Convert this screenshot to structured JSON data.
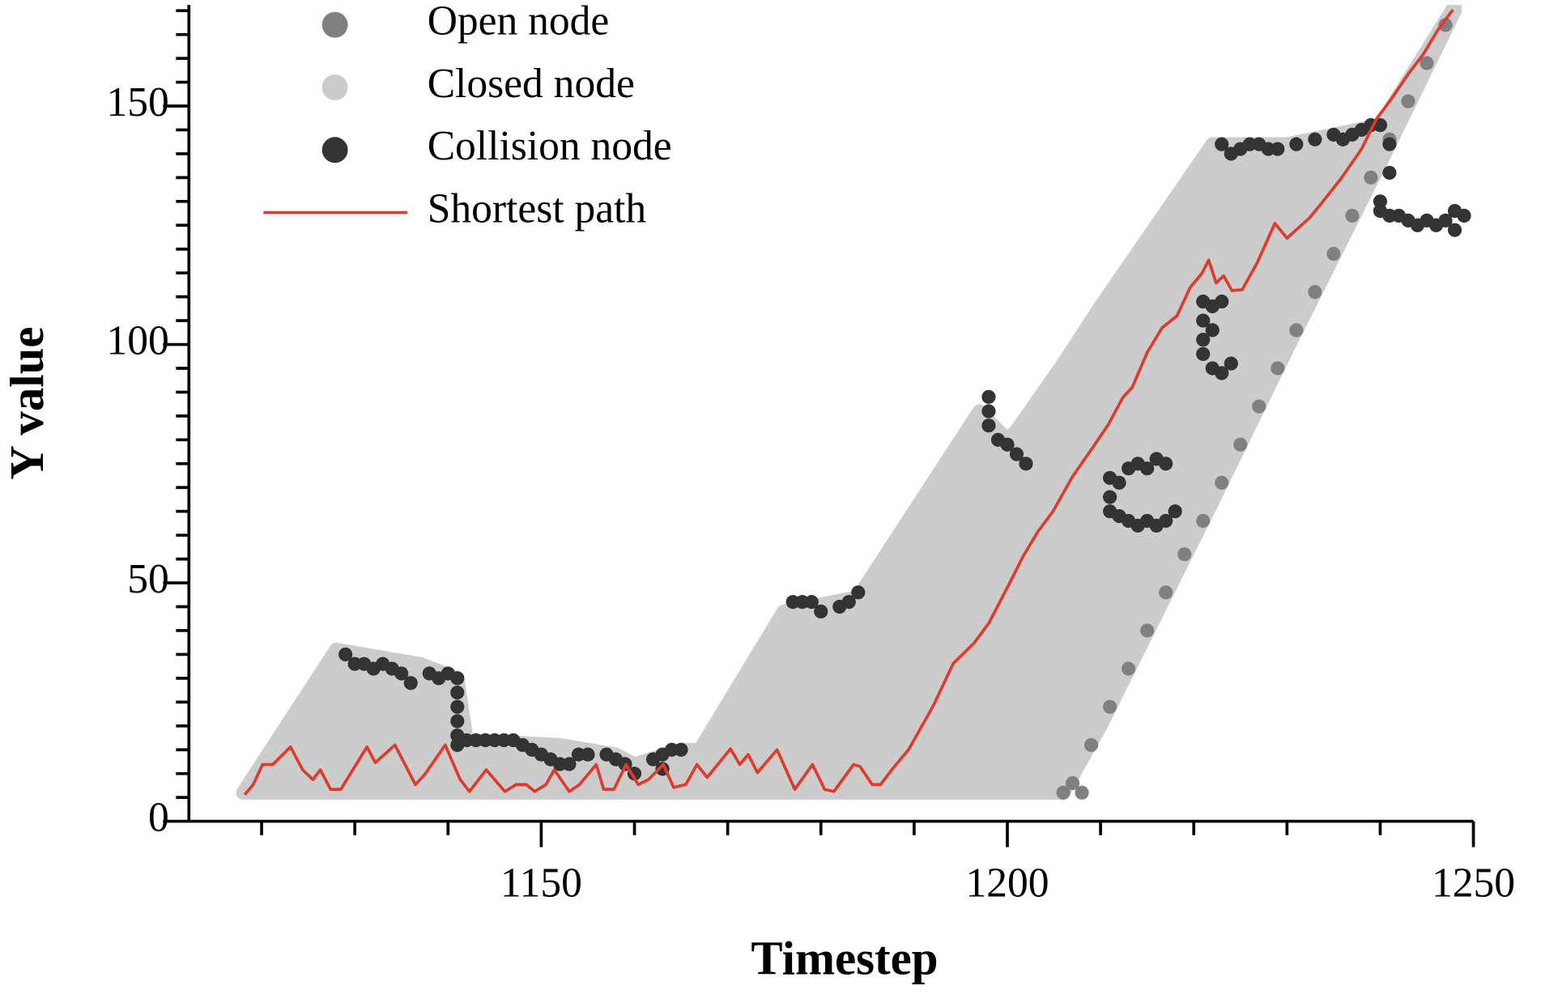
{
  "chart_data": {
    "type": "scatter",
    "xlabel": "Timestep",
    "ylabel": "Y value",
    "xlim": [
      1112.2,
      1250
    ],
    "ylim": [
      0,
      171.2
    ],
    "xticks": [
      1150,
      1200,
      1250
    ],
    "xminorticks": [
      1120,
      1130,
      1140,
      1160,
      1170,
      1180,
      1190,
      1210,
      1220,
      1230,
      1240
    ],
    "yticks": [
      0,
      50,
      100,
      150
    ],
    "yminorticks": [
      5,
      10,
      15,
      20,
      25,
      30,
      35,
      40,
      45,
      55,
      60,
      65,
      70,
      75,
      80,
      85,
      90,
      95,
      105,
      110,
      115,
      120,
      125,
      130,
      135,
      140,
      145,
      155,
      160,
      165,
      170
    ],
    "legend": "upper left",
    "series": [
      {
        "name": "Open node",
        "type": "scatter",
        "color": "#808080",
        "x": [
          1206,
          1207,
          1208,
          1209,
          1211,
          1213,
          1215,
          1217,
          1219,
          1221,
          1223,
          1225,
          1227,
          1229,
          1231,
          1233,
          1235,
          1237,
          1239,
          1241,
          1243,
          1245,
          1247
        ],
        "y": [
          6,
          8,
          6,
          16,
          24,
          32,
          40,
          48,
          56,
          63,
          71,
          79,
          87,
          95,
          103,
          111,
          119,
          127,
          135,
          143,
          151,
          159,
          167
        ]
      },
      {
        "name": "Closed node",
        "type": "range",
        "color": "#cccccc",
        "x": [
          1118,
          1128,
          1137,
          1141,
          1142,
          1152,
          1158,
          1160,
          1165,
          1167,
          1176,
          1184,
          1197,
          1200,
          1201,
          1206,
          1210,
          1222,
          1230,
          1240,
          1248
        ],
        "high": [
          6,
          36,
          33,
          30,
          17,
          16,
          14,
          12,
          15,
          15,
          44,
          47,
          86,
          80,
          82,
          96,
          108,
          142,
          142,
          146,
          171
        ],
        "low": [
          6,
          6,
          6,
          6,
          6,
          6,
          6,
          6,
          6,
          6,
          6,
          6,
          6,
          6,
          6,
          6,
          20,
          67,
          99,
          138,
          170
        ]
      },
      {
        "name": "Collision node",
        "type": "scatter",
        "color": "#333333",
        "x": [
          1129,
          1130,
          1131,
          1132,
          1133,
          1134,
          1135,
          1136,
          1138,
          1139,
          1140,
          1141,
          1141,
          1141,
          1141,
          1141,
          1141,
          1142,
          1143,
          1144,
          1145,
          1146,
          1147,
          1148,
          1149,
          1150,
          1151,
          1152,
          1153,
          1154,
          1155,
          1157,
          1158,
          1159,
          1160,
          1162,
          1163,
          1164,
          1165,
          1163,
          1177,
          1178,
          1179,
          1180,
          1182,
          1183,
          1184,
          1198,
          1198,
          1198,
          1199,
          1200,
          1201,
          1202,
          1211,
          1211,
          1211,
          1212,
          1213,
          1214,
          1215,
          1216,
          1217,
          1218,
          1213,
          1214,
          1215,
          1216,
          1217,
          1212,
          1221,
          1221,
          1221,
          1221,
          1222,
          1222,
          1223,
          1222,
          1223,
          1224,
          1223,
          1224,
          1225,
          1226,
          1227,
          1228,
          1229,
          1231,
          1233,
          1235,
          1236,
          1237,
          1238,
          1239,
          1240,
          1241,
          1241,
          1240,
          1240,
          1241,
          1242,
          1243,
          1244,
          1245,
          1246,
          1247,
          1248,
          1249,
          1248
        ],
        "y": [
          35,
          33,
          33,
          32,
          33,
          32,
          31,
          29,
          31,
          30,
          31,
          30,
          27,
          24,
          21,
          18,
          16,
          17,
          17,
          17,
          17,
          17,
          17,
          16,
          15,
          14,
          13,
          12,
          12,
          14,
          14,
          14,
          13,
          12,
          10,
          13,
          14,
          15,
          15,
          11,
          46,
          46,
          46,
          44,
          45,
          46,
          48,
          89,
          86,
          83,
          80,
          79,
          77,
          75,
          72,
          68,
          65,
          64,
          63,
          62,
          63,
          62,
          63,
          65,
          74,
          75,
          74,
          76,
          75,
          71,
          109,
          105,
          101,
          98,
          108,
          103,
          109,
          95,
          94,
          96,
          142,
          140,
          141,
          142,
          142,
          141,
          141,
          142,
          143,
          144,
          143,
          144,
          145,
          146,
          146,
          142,
          136,
          130,
          128,
          127,
          127,
          126,
          125,
          126,
          125,
          126,
          128,
          127,
          124
        ]
      },
      {
        "name": "Shortest path",
        "type": "line",
        "color": "#e03a2a",
        "x": [
          1118.2,
          1119.1,
          1120.1,
          1121.2,
          1123.1,
          1124.4,
          1125.5,
          1126.3,
          1127.4,
          1128.5,
          1131.3,
          1132.2,
          1134.3,
          1136.5,
          1137.5,
          1139.7,
          1141.3,
          1142.3,
          1144.1,
          1146.1,
          1147.3,
          1148.4,
          1149.3,
          1150.5,
          1151.4,
          1153.0,
          1154.1,
          1155.9,
          1156.7,
          1157.8,
          1159.1,
          1160.4,
          1161.5,
          1163.1,
          1164.2,
          1165.5,
          1166.7,
          1167.8,
          1170.3,
          1171.3,
          1172.2,
          1173.2,
          1175.3,
          1177.2,
          1179.1,
          1180.4,
          1181.4,
          1183.5,
          1184.2,
          1185.5,
          1186.4,
          1187.6,
          1189.4,
          1192.1,
          1194.2,
          1196.4,
          1198.0,
          1200.1,
          1201.7,
          1203.3,
          1204.9,
          1207.0,
          1209.2,
          1210.8,
          1212.4,
          1213.4,
          1215.0,
          1216.6,
          1218.2,
          1219.6,
          1220.9,
          1221.6,
          1222.4,
          1223.2,
          1224.1,
          1225.2,
          1226.8,
          1228.7,
          1230.0,
          1232.4,
          1233.7,
          1235.8,
          1238.0,
          1239.6,
          1241.2,
          1243.0,
          1244.6,
          1246.2,
          1247.8
        ],
        "y": [
          5.6,
          7.7,
          11.9,
          11.9,
          15.6,
          10.8,
          8.75,
          10.8,
          6.7,
          6.7,
          15.6,
          12.3,
          16.0,
          7.7,
          9.8,
          16.0,
          8.75,
          6.25,
          10.8,
          6.25,
          7.7,
          7.7,
          6.25,
          7.7,
          10.8,
          6.25,
          7.7,
          11.9,
          6.7,
          6.7,
          11.9,
          7.7,
          8.75,
          11.9,
          7.1,
          7.7,
          11.9,
          9.2,
          15.2,
          11.9,
          14.0,
          10.2,
          15.0,
          6.7,
          11.9,
          6.7,
          6.25,
          11.9,
          11.5,
          7.7,
          7.7,
          10.8,
          15.0,
          24.4,
          33.1,
          37.3,
          41.5,
          49.4,
          55.6,
          60.8,
          65.0,
          72.3,
          78.5,
          83.1,
          88.9,
          91.0,
          98.3,
          103.5,
          106.0,
          111.9,
          115.0,
          117.7,
          112.9,
          114.4,
          111.3,
          111.5,
          117.1,
          125.4,
          122.3,
          126.5,
          129.6,
          134.8,
          141.0,
          147.3,
          151.5,
          156.7,
          160.8,
          166.0,
          170.2
        ]
      }
    ]
  }
}
